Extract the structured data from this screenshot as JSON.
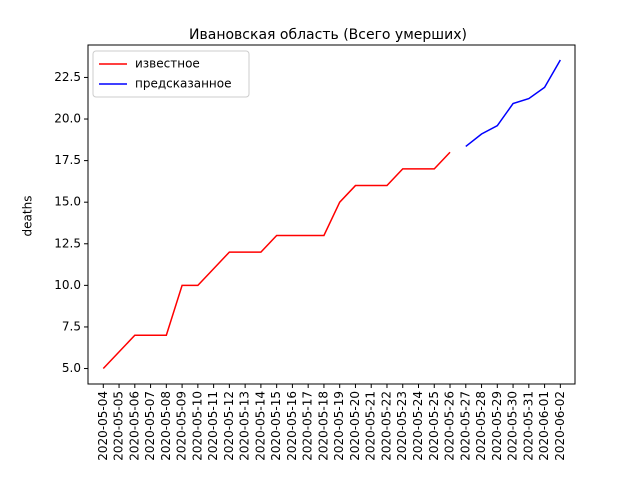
{
  "chart_data": {
    "type": "line",
    "title": "Ивановская область (Всего умерших)",
    "ylabel": "deaths",
    "x": [
      "2020-05-04",
      "2020-05-05",
      "2020-05-06",
      "2020-05-07",
      "2020-05-08",
      "2020-05-09",
      "2020-05-10",
      "2020-05-11",
      "2020-05-12",
      "2020-05-13",
      "2020-05-14",
      "2020-05-15",
      "2020-05-16",
      "2020-05-17",
      "2020-05-18",
      "2020-05-19",
      "2020-05-20",
      "2020-05-21",
      "2020-05-22",
      "2020-05-23",
      "2020-05-24",
      "2020-05-25",
      "2020-05-26",
      "2020-05-27",
      "2020-05-28",
      "2020-05-29",
      "2020-05-30",
      "2020-05-31",
      "2020-06-01",
      "2020-06-02"
    ],
    "series": [
      {
        "name": "известное",
        "color": "#ff0000",
        "values": [
          5,
          6,
          7,
          7,
          7,
          10,
          10,
          11,
          12,
          12,
          12,
          13,
          13,
          13,
          13,
          15,
          16,
          16,
          16,
          17,
          17,
          17,
          18,
          null,
          null,
          null,
          null,
          null,
          null,
          null
        ]
      },
      {
        "name": "предсказанное",
        "color": "#0000ff",
        "values": [
          null,
          null,
          null,
          null,
          null,
          null,
          null,
          null,
          null,
          null,
          null,
          null,
          null,
          null,
          null,
          null,
          null,
          null,
          null,
          null,
          null,
          null,
          null,
          18.35,
          19.1,
          19.6,
          20.93,
          21.23,
          21.9,
          23.55
        ]
      }
    ],
    "ylim": [
      4.07,
      24.45
    ],
    "yticks": [
      {
        "value": 5,
        "label": "5.0"
      },
      7.5,
      {
        "value": 10,
        "label": "10.0"
      },
      12.5,
      {
        "value": 15,
        "label": "15.0"
      },
      17.5,
      {
        "value": 20,
        "label": "20.0"
      },
      22.5
    ],
    "legend": "upper left"
  }
}
